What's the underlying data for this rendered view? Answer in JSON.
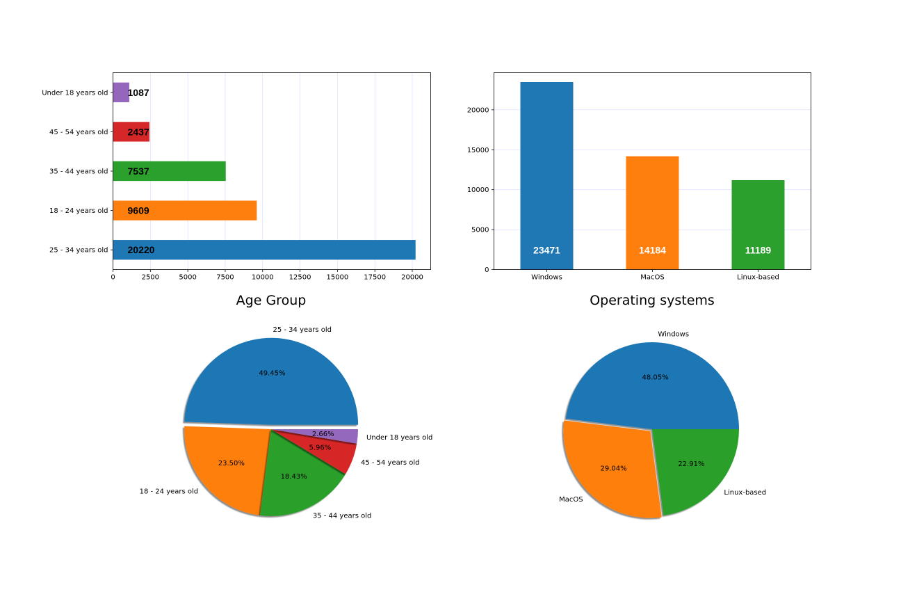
{
  "colors": {
    "c0": "#1f77b4",
    "c1": "#ff7f0e",
    "c2": "#2ca02c",
    "c3": "#d62728",
    "c4": "#9467bd"
  },
  "chart_data": [
    {
      "type": "bar",
      "orientation": "horizontal",
      "categories": [
        "25 - 34 years old",
        "18 - 24 years old",
        "35 - 44 years old",
        "45 - 54 years old",
        "Under 18 years old"
      ],
      "values": [
        20220,
        9609,
        7537,
        2437,
        1087
      ],
      "data_labels": [
        "20220",
        "9609",
        "7537",
        "2437",
        "1087"
      ],
      "xticks": [
        0,
        2500,
        5000,
        7500,
        10000,
        12500,
        15000,
        17500,
        20000
      ],
      "xlim": [
        0,
        21231
      ],
      "grid": "vertical",
      "title": ""
    },
    {
      "type": "bar",
      "orientation": "vertical",
      "categories": [
        "Windows",
        "MacOS",
        "Linux-based"
      ],
      "values": [
        23471,
        14184,
        11189
      ],
      "data_labels": [
        "23471",
        "14184",
        "11189"
      ],
      "yticks": [
        0,
        5000,
        10000,
        15000,
        20000
      ],
      "ylim": [
        0,
        24645
      ],
      "grid": "horizontal",
      "title": ""
    },
    {
      "type": "pie",
      "title": "Age Group",
      "categories": [
        "25 - 34 years old",
        "18 - 24 years old",
        "35 - 44 years old",
        "45 - 54 years old",
        "Under 18 years old"
      ],
      "values": [
        49.45,
        23.5,
        18.43,
        5.96,
        2.66
      ],
      "pct_labels": [
        "49.45%",
        "23.50%",
        "18.43%",
        "5.96%",
        "2.66%"
      ],
      "explode": [
        0.05,
        0,
        0,
        0,
        0
      ],
      "shadow": true
    },
    {
      "type": "pie",
      "title": "Operating systems",
      "categories": [
        "Windows",
        "MacOS",
        "Linux-based"
      ],
      "values": [
        48.05,
        29.04,
        22.91
      ],
      "pct_labels": [
        "48.05%",
        "29.04%",
        "22.91%"
      ],
      "explode": [
        0.0,
        0.03,
        0
      ],
      "shadow": true
    }
  ]
}
